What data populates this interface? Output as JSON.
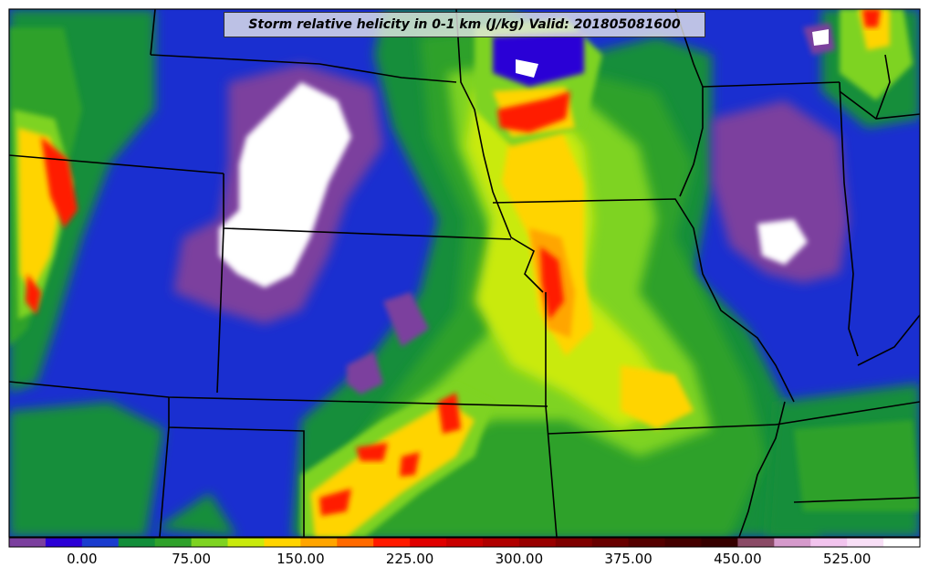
{
  "title": "Storm relative helicity in 0-1 km (J/kg) Valid: 201805081600",
  "colorbar": {
    "colors": [
      "#7b3f9e",
      "#2b00d6",
      "#1a3ccf",
      "#128e3a",
      "#2fa12a",
      "#7ed321",
      "#c9ea0c",
      "#ffd400",
      "#ffa500",
      "#ff6a00",
      "#ff1a00",
      "#e00000",
      "#c80000",
      "#b00000",
      "#980000",
      "#7e0000",
      "#680000",
      "#540000",
      "#440000",
      "#360000",
      "#8a4a66",
      "#d59acb",
      "#f2c4ee",
      "#f8dff6",
      "#ffffff"
    ],
    "tick_labels": [
      "0.00",
      "75.00",
      "150.00",
      "225.00",
      "300.00",
      "375.00",
      "450.00",
      "525.00"
    ],
    "tick_values": [
      0,
      75,
      150,
      225,
      300,
      375,
      450,
      525
    ],
    "range": [
      -50,
      575
    ]
  }
}
